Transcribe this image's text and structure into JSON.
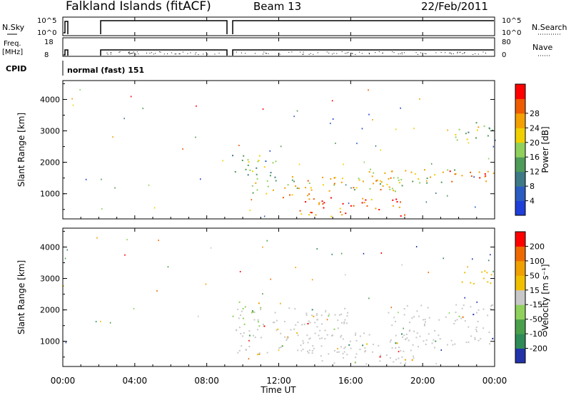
{
  "header": {
    "title": "Falkland Islands (fitACF)",
    "beam": "Beam 13",
    "date": "22/Feb/2011"
  },
  "small_panels": {
    "nsky_label": "N.Sky",
    "nsky_ticks": [
      "10^5",
      "10^0"
    ],
    "nsearch_label": "N.Search",
    "nsearch_ticks": [
      "10^5",
      "10^0"
    ],
    "freq_label": "Freq.",
    "freq_unit": "[MHz]",
    "freq_ticks": [
      "18",
      "8"
    ],
    "nave_label": "Nave",
    "nave_ticks": [
      "80",
      "0"
    ],
    "cpid_label": "CPID",
    "cpid_value": "normal (fast) 151",
    "gap_hours": [
      [
        0.3,
        2.0
      ],
      [
        9.2,
        9.4
      ]
    ]
  },
  "chart_data": [
    {
      "type": "heatmap",
      "name": "power",
      "ylabel": "Slant Range [km]",
      "xlabel": "",
      "yticks": [
        "1000",
        "2000",
        "3000",
        "4000"
      ],
      "ylim": [
        200,
        4600
      ],
      "colorbar": {
        "label": "Power [dB]",
        "ticks": [
          "4",
          "8",
          "12",
          "16",
          "20",
          "24",
          "28"
        ],
        "colors": [
          "#1f3fd9",
          "#2b5cc2",
          "#3d7a86",
          "#4f9b5a",
          "#8fd15c",
          "#f0d000",
          "#f3a000",
          "#ee5b00",
          "#ff0000"
        ]
      },
      "bands": [
        {
          "x0": 9.4,
          "x1": 12,
          "y0": 1500,
          "y1": 2300,
          "level": 3
        },
        {
          "x0": 10.5,
          "x1": 14,
          "y0": 900,
          "y1": 1500,
          "level": 5
        },
        {
          "x0": 13,
          "x1": 19,
          "y0": 300,
          "y1": 900,
          "level": 7
        },
        {
          "x0": 12,
          "x1": 19,
          "y0": 1100,
          "y1": 1600,
          "level": 5
        },
        {
          "x0": 17,
          "x1": 22,
          "y0": 1300,
          "y1": 1800,
          "level": 5
        },
        {
          "x0": 21,
          "x1": 24,
          "y0": 1400,
          "y1": 1800,
          "level": 7
        },
        {
          "x0": 21.5,
          "x1": 24,
          "y0": 2700,
          "y1": 3300,
          "level": 4
        }
      ]
    },
    {
      "type": "heatmap",
      "name": "velocity",
      "ylabel": "Slant Range [km]",
      "xlabel": "Time UT",
      "xticks": [
        "00:00",
        "04:00",
        "08:00",
        "12:00",
        "16:00",
        "20:00",
        "00:00"
      ],
      "yticks": [
        "1000",
        "2000",
        "3000",
        "4000"
      ],
      "ylim": [
        200,
        4600
      ],
      "colorbar": {
        "label": "Velocity [m s⁻¹]",
        "ticks": [
          "200",
          "100",
          "50",
          "15",
          "-15",
          "-50",
          "-100",
          "-200"
        ],
        "colors": [
          "#2233aa",
          "#2e8b57",
          "#4aa04a",
          "#8fd15c",
          "#c8c8c8",
          "#f0c000",
          "#f0a000",
          "#ee6a00",
          "#ff0000"
        ]
      },
      "bands": [
        {
          "x0": 9.4,
          "x1": 11,
          "y0": 1500,
          "y1": 2300,
          "color": "#8fd15c"
        },
        {
          "x0": 9.6,
          "x1": 16,
          "y0": 600,
          "y1": 2100,
          "color": "#c8c8c8"
        },
        {
          "x0": 13,
          "x1": 19.5,
          "y0": 300,
          "y1": 1300,
          "color": "#c8c8c8"
        },
        {
          "x0": 18,
          "x1": 24,
          "y0": 800,
          "y1": 2200,
          "color": "#c8c8c8"
        },
        {
          "x0": 18.8,
          "x1": 19.6,
          "y0": 300,
          "y1": 500,
          "color": "#f0a000"
        },
        {
          "x0": 22,
          "x1": 24,
          "y0": 2800,
          "y1": 3300,
          "color": "#f0c000"
        }
      ]
    }
  ]
}
